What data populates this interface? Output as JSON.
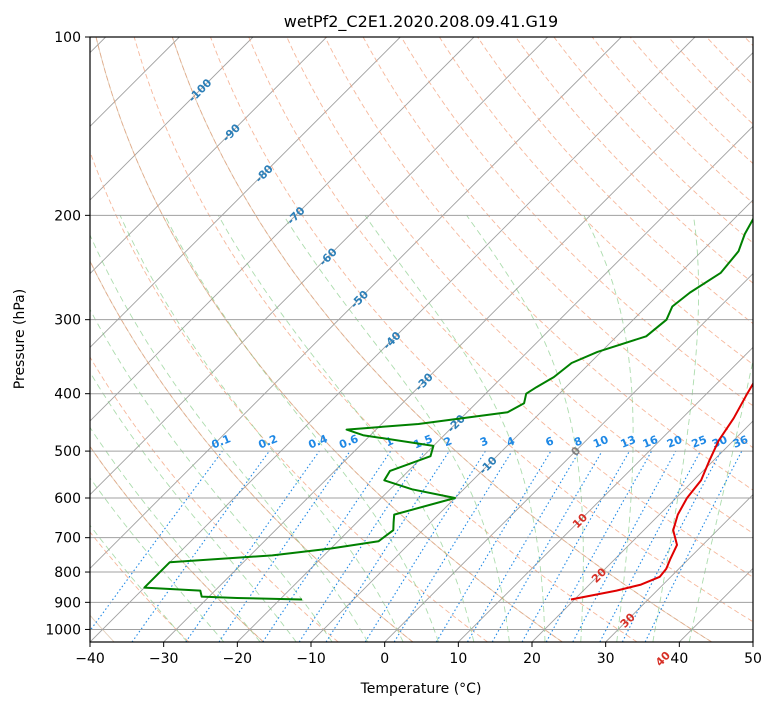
{
  "chart_data": {
    "type": "line",
    "title": "wetPf2_C2E1.2020.208.09.41.G19",
    "xlabel": "Temperature (°C)",
    "ylabel": "Pressure (hPa)",
    "xlim": [
      -40,
      50
    ],
    "ylim": [
      1050,
      100
    ],
    "y_scale": "log",
    "grid": true,
    "x_ticks": [
      -40,
      -30,
      -20,
      -10,
      0,
      10,
      20,
      30,
      40,
      50
    ],
    "y_ticks": [
      100,
      200,
      300,
      400,
      500,
      600,
      700,
      800,
      900,
      1000
    ],
    "isotherm_labels": [
      "-100",
      "-90",
      "-80",
      "-70",
      "-60",
      "-50",
      "-40",
      "-30",
      "-20",
      "-10",
      "0",
      "10",
      "20",
      "30",
      "40"
    ],
    "mixing_ratio_labels": [
      "0.1",
      "0.2",
      "0.4",
      "0.6",
      "1",
      "1.5",
      "2",
      "3",
      "4",
      "6",
      "8",
      "10",
      "13",
      "16",
      "20",
      "25",
      "30",
      "36"
    ],
    "series": [
      {
        "role": "temperature",
        "color": "#e00000",
        "points": [
          [
            890,
            19.5
          ],
          [
            860,
            24.5
          ],
          [
            840,
            27.0
          ],
          [
            815,
            28.5
          ],
          [
            790,
            28.3
          ],
          [
            760,
            27.5
          ],
          [
            720,
            26.5
          ],
          [
            680,
            24.0
          ],
          [
            640,
            22.5
          ],
          [
            600,
            21.5
          ],
          [
            560,
            21.0
          ],
          [
            520,
            19.5
          ],
          [
            480,
            18.0
          ],
          [
            440,
            17.0
          ],
          [
            400,
            15.5
          ],
          [
            360,
            14.0
          ],
          [
            320,
            12.5
          ],
          [
            290,
            11.0
          ],
          [
            260,
            9.5
          ],
          [
            235,
            8.0
          ],
          [
            215,
            7.0
          ],
          [
            195,
            5.5
          ],
          [
            175,
            4.0
          ],
          [
            155,
            2.5
          ],
          [
            140,
            1.8
          ],
          [
            125,
            1.5
          ],
          [
            115,
            2.0
          ],
          [
            105,
            5.0
          ],
          [
            100,
            7.0
          ]
        ]
      },
      {
        "role": "dewpoint",
        "color": "#008000",
        "points": [
          [
            890,
            -17.0
          ],
          [
            885,
            -26.0
          ],
          [
            880,
            -31.0
          ],
          [
            870,
            -31.5
          ],
          [
            860,
            -32.0
          ],
          [
            850,
            -40.0
          ],
          [
            770,
            -40.0
          ],
          [
            750,
            -27.0
          ],
          [
            730,
            -20.0
          ],
          [
            710,
            -14.5
          ],
          [
            680,
            -14.0
          ],
          [
            660,
            -15.0
          ],
          [
            640,
            -16.0
          ],
          [
            600,
            -10.0
          ],
          [
            580,
            -17.0
          ],
          [
            560,
            -22.0
          ],
          [
            540,
            -22.5
          ],
          [
            510,
            -19.0
          ],
          [
            490,
            -20.0
          ],
          [
            470,
            -31.0
          ],
          [
            460,
            -34.0
          ],
          [
            450,
            -25.0
          ],
          [
            430,
            -14.5
          ],
          [
            415,
            -13.5
          ],
          [
            400,
            -14.5
          ],
          [
            390,
            -14.0
          ],
          [
            375,
            -13.0
          ],
          [
            355,
            -12.5
          ],
          [
            340,
            -10.5
          ],
          [
            320,
            -6.0
          ],
          [
            300,
            -5.5
          ],
          [
            285,
            -6.5
          ],
          [
            270,
            -6.0
          ],
          [
            250,
            -4.5
          ],
          [
            230,
            -5.0
          ],
          [
            215,
            -6.5
          ],
          [
            195,
            -8.0
          ],
          [
            175,
            -9.0
          ],
          [
            160,
            -10.0
          ],
          [
            150,
            -11.0
          ],
          [
            140,
            -10.5
          ],
          [
            130,
            -9.0
          ],
          [
            120,
            -7.0
          ],
          [
            110,
            -4.0
          ],
          [
            100,
            -2.5
          ]
        ]
      }
    ]
  }
}
